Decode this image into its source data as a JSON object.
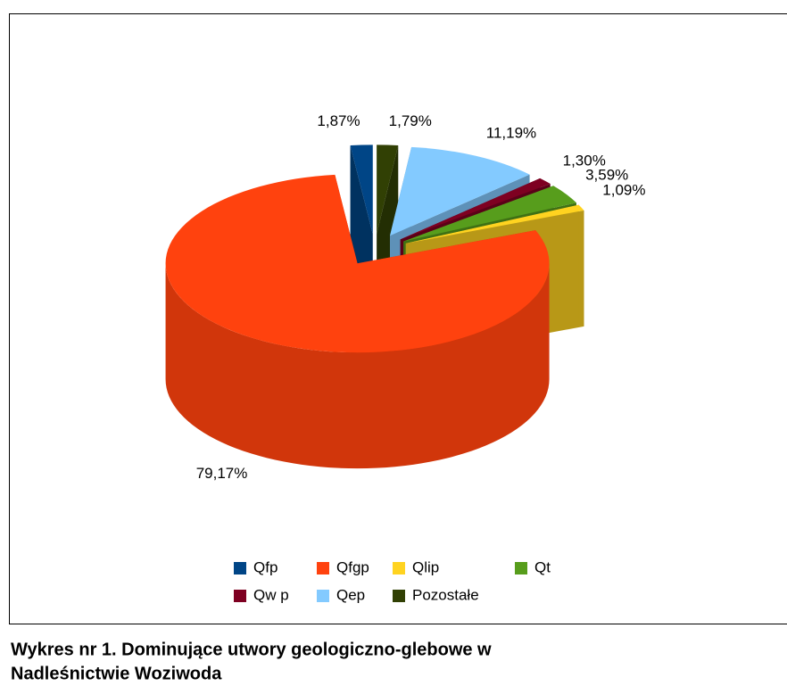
{
  "chart_data": {
    "type": "pie3d",
    "categories": [
      "Qfp",
      "Qfgp",
      "Qlip",
      "Qt",
      "Qw p",
      "Qep",
      "Pozostałe"
    ],
    "values": [
      1.87,
      79.17,
      1.09,
      3.59,
      1.3,
      11.19,
      1.79
    ],
    "value_labels": [
      "1,87%",
      "79,17%",
      "1,09%",
      "3,59%",
      "1,30%",
      "11,19%",
      "1,79%"
    ],
    "colors": [
      "#004586",
      "#ff420e",
      "#ffd320",
      "#579d1c",
      "#7e0021",
      "#83caff",
      "#314004"
    ],
    "caption": [
      "Wykres nr 1. Dominujące utwory geologiczno-glebowe w",
      "Nadleśnictwie Woziwoda"
    ]
  }
}
